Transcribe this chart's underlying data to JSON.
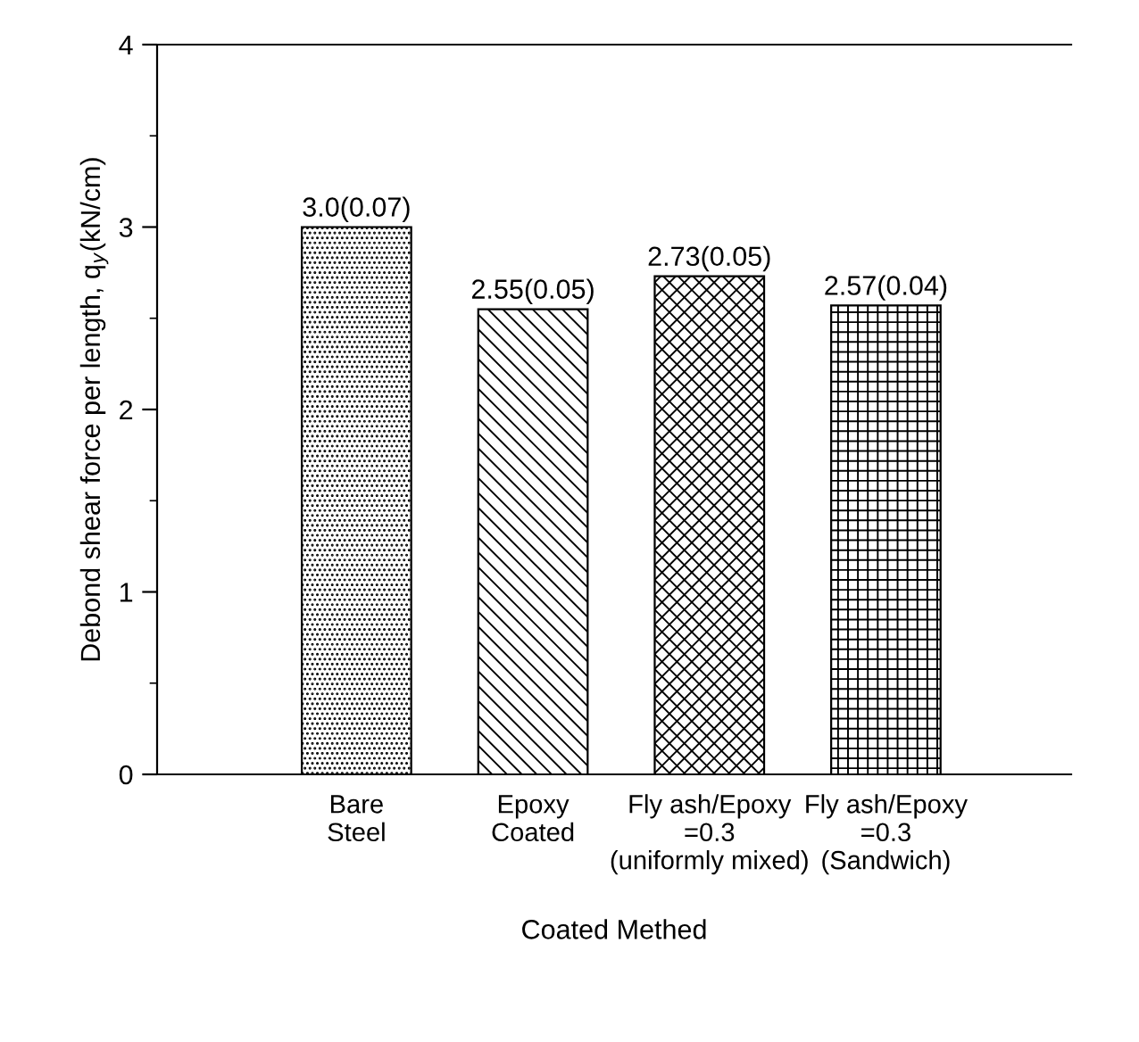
{
  "chart_data": {
    "type": "bar",
    "xlabel": "Coated Methed",
    "ylabel": "Debond shear force per length, q$_{y}$(kN/cm)",
    "categories": [
      "Bare\nSteel",
      "Epoxy\nCoated",
      "Fly ash/Epoxy\n=0.3\n(uniformly mixed)",
      "Fly ash/Epoxy\n=0.3\n(Sandwich)"
    ],
    "values": [
      3.0,
      2.55,
      2.73,
      2.57
    ],
    "value_labels": [
      "3.0(0.07)",
      "2.55(0.05)",
      "2.73(0.05)",
      "2.57(0.04)"
    ],
    "color": "#000000",
    "ylim": [
      0,
      4
    ],
    "yticks": [
      0,
      1,
      2,
      3,
      4
    ],
    "grid": false,
    "legend": false
  }
}
